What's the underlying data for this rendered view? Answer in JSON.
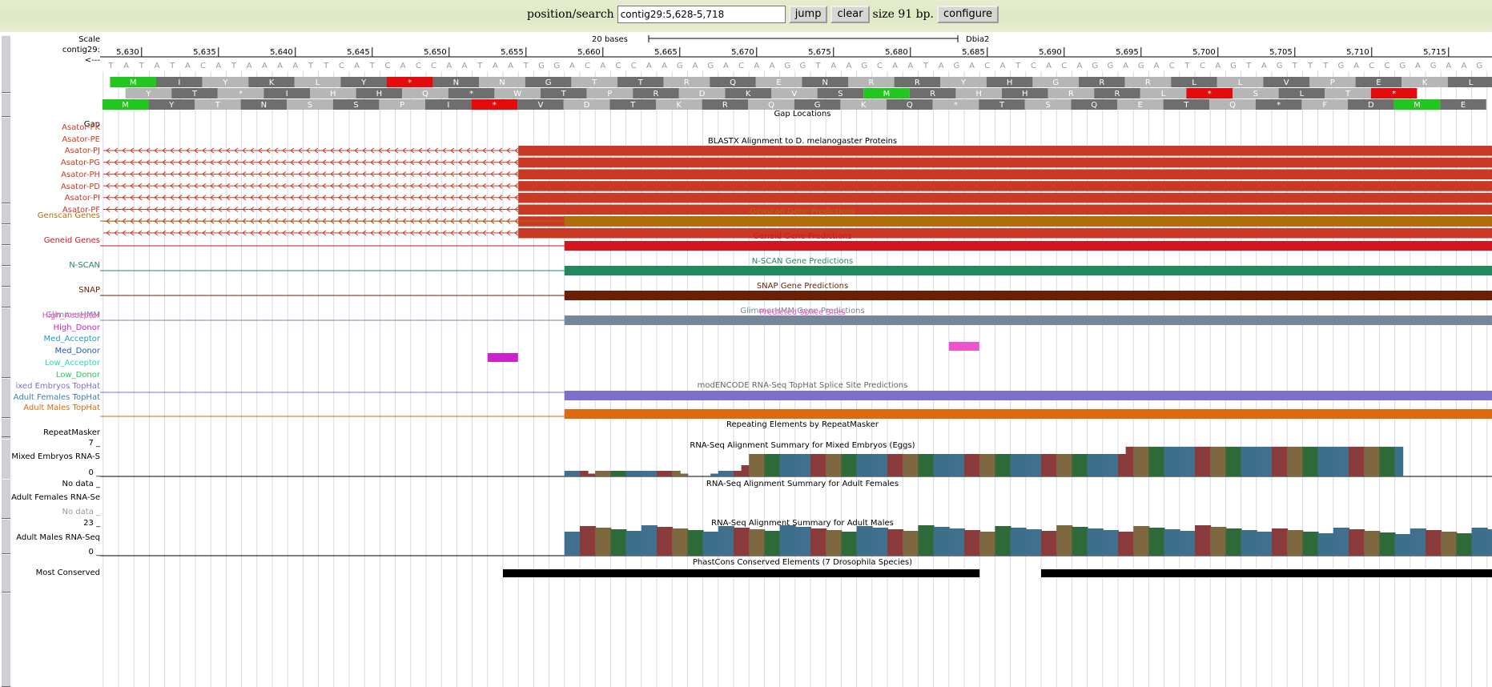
{
  "search": {
    "label": "position/search",
    "value": "contig29:5,628-5,718",
    "jump_label": "jump",
    "clear_label": "clear",
    "size_text": "size 91 bp.",
    "configure_label": "configure"
  },
  "ruler": {
    "scale_label": "Scale",
    "chrom_label": "contig29:",
    "strand_label": "<---",
    "scalebar_label": "20 bases",
    "assembly": "Dbia2",
    "start": 5628,
    "end": 5718,
    "ticks": [
      "5,630",
      "5,635",
      "5,640",
      "5,645",
      "5,650",
      "5,655",
      "5,660",
      "5,665",
      "5,670",
      "5,675",
      "5,680",
      "5,685",
      "5,690",
      "5,695",
      "5,700",
      "5,705",
      "5,710",
      "5,715"
    ]
  },
  "sequence": "TATATACATAAAATTCATCACCAATAATGGACACCAAGAGACAAGGTAAGCAATAGACATCACAGGAGACTCAGTAGTTTGACCGAGAAG",
  "frames": [
    {
      "aa": "YIYKLYHNNGTTRQENRRYHGRRLLVPEKL",
      "highlights": [
        {
          "i": 0,
          "color": "#21c61e",
          "text": "M"
        },
        {
          "i": 6,
          "color": "#e30b0b",
          "text": "*"
        }
      ]
    },
    {
      "aa": "YT*IHHQ*WTPRDKVSNRHHRRLSSLTE",
      "highlights": [
        {
          "i": 16,
          "color": "#21c61e",
          "text": "M"
        },
        {
          "i": 23,
          "color": "#e30b0b",
          "text": "*"
        },
        {
          "i": 27,
          "color": "#e30b0b",
          "text": "*"
        }
      ]
    },
    {
      "aa": "MYTNSSPI*VDTKRQGKQ*TSQETQ*FDRE",
      "highlights": [
        {
          "i": 0,
          "color": "#21c61e",
          "text": "M"
        },
        {
          "i": 8,
          "color": "#e30b0b",
          "text": "*"
        },
        {
          "i": 28,
          "color": "#21c61e",
          "text": "M"
        }
      ]
    }
  ],
  "tracks": {
    "gap": {
      "label": "Gap",
      "title": "Gap Locations"
    },
    "blastx": {
      "title": "BLASTX Alignment to D. melanogaster Proteins",
      "color": "#c83a25",
      "items": [
        "Asator-PK",
        "Asator-PE",
        "Asator-PJ",
        "Asator-PG",
        "Asator-PH",
        "Asator-PD",
        "Asator-PI",
        "Asator-PF"
      ],
      "block_start": 5655
    }
  },
  "genepreds": [
    {
      "label": "Genscan Genes",
      "title": "Genscan Gene Predictions",
      "color": "#b16d0a"
    },
    {
      "label": "Geneid Genes",
      "title": "Geneid Gene Predictions",
      "color": "#d3151e"
    },
    {
      "label": "N-SCAN",
      "title": "N-SCAN Gene Predictions",
      "color": "#23895c"
    },
    {
      "label": "SNAP",
      "title": "SNAP Gene Predictions",
      "color": "#6b1f07"
    },
    {
      "label": "GlimmerHMM",
      "title": "GlimmerHMM Gene Predictions",
      "color": "#778799"
    }
  ],
  "splice": {
    "title": "Predicted Splice Sites",
    "title_color": "#ee55cc",
    "rows": [
      {
        "label": "High_Acceptor",
        "color": "#ee55cc"
      },
      {
        "label": "High_Donor",
        "color": "#cc22cc"
      },
      {
        "label": "Med_Acceptor",
        "color": "#2299cc"
      },
      {
        "label": "Med_Donor",
        "color": "#2255cc"
      },
      {
        "label": "Low_Acceptor",
        "color": "#22ddbb"
      },
      {
        "label": "Low_Donor",
        "color": "#22cc55"
      }
    ]
  },
  "tophat": {
    "title": "modENCODE RNA-Seq TopHat Splice Site Predictions",
    "rows": [
      {
        "label": "ixed Embryos TopHat",
        "color": "#7f6fc8"
      },
      {
        "label": "Adult Females TopHat",
        "color": "#3d7fb0"
      },
      {
        "label": "Adult Males TopHat",
        "color": "#de6a10"
      }
    ]
  },
  "repeat": {
    "label": "RepeatMasker",
    "title": "Repeating Elements by RepeatMasker"
  },
  "rnaseq": {
    "embryos": {
      "label": "Mixed Embryos RNA-S",
      "title": "RNA-Seq Alignment Summary for Mixed Embryos (Eggs)",
      "max": "7 _",
      "min": "0 _",
      "values": [
        1,
        1,
        1,
        0.5,
        1,
        1,
        1,
        1,
        1,
        1,
        1,
        1,
        1,
        1,
        1,
        0.5,
        0,
        0,
        0,
        0.5,
        1,
        1,
        1,
        2,
        4,
        4,
        4,
        4,
        4,
        4,
        4,
        4,
        4,
        4,
        4,
        4,
        4,
        4,
        4,
        4,
        4,
        4,
        4,
        4,
        4,
        4,
        4,
        4,
        4,
        4,
        4,
        4,
        4,
        4,
        4,
        4,
        4,
        4,
        4,
        4,
        4,
        4,
        4,
        4,
        4,
        4,
        4,
        4,
        4,
        4,
        4,
        4,
        4,
        5.3,
        5.3,
        5.3,
        5.3,
        5.3,
        5.3,
        5.3,
        5.3,
        5.3,
        5.3,
        5.3,
        5.3,
        5.3,
        5.3,
        5.3,
        5.3,
        5.3,
        5.3,
        5.3,
        5.3,
        5.3,
        5.3,
        5.3,
        5.3,
        5.3,
        5.3,
        5.3,
        5.3,
        5.3,
        5.3,
        5.3,
        5.3,
        5.3,
        5.3,
        5.3,
        5.3
      ]
    },
    "females": {
      "label": "Adult Females RNA-Se",
      "title": "RNA-Seq Alignment Summary for Adult Females",
      "nodata": "No data _",
      "nodata2": "No data _"
    },
    "males": {
      "label": "Adult Males RNA-Seq",
      "title": "RNA-Seq Alignment Summary for Adult Males",
      "max": "23 _",
      "min": "0 _"
    },
    "colors": [
      "#41708f",
      "#8a3c3d",
      "#7e6840",
      "#2f6b3a",
      "#3c6f8a"
    ]
  },
  "phastcons": {
    "label": "Most Conserved",
    "title": "PhastCons Conserved Elements (7 Drosophila Species)"
  }
}
